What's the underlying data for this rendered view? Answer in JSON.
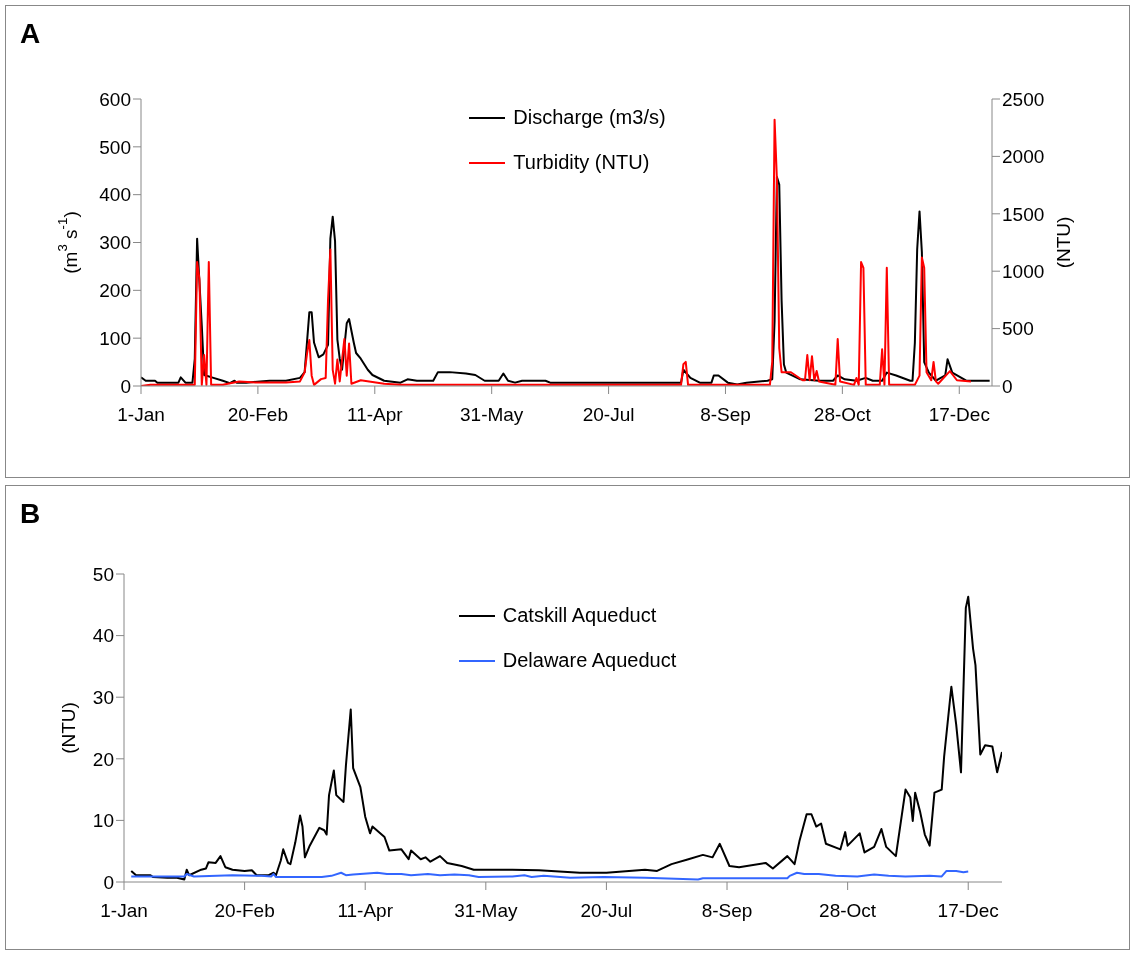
{
  "chart_data": [
    {
      "type": "line",
      "title": "A",
      "ylabel": "(m$^{3}$ s$^{-1}$)",
      "y2label": "(NTU)",
      "legend": "top",
      "xlim": [
        "--01-01",
        "--12-31"
      ],
      "xticks": [
        {
          "value": "--01-01",
          "label": "1-Jan"
        },
        {
          "value": "--02-20",
          "label": "20-Feb"
        },
        {
          "value": "--04-11",
          "label": "11-Apr"
        },
        {
          "value": "--05-31",
          "label": "31-May"
        },
        {
          "value": "--07-20",
          "label": "20-Jul"
        },
        {
          "value": "--09-08",
          "label": "8-Sep"
        },
        {
          "value": "--10-28",
          "label": "28-Oct"
        },
        {
          "value": "--12-17",
          "label": "17-Dec"
        }
      ],
      "ylim": [
        0,
        600
      ],
      "yticks": [
        0,
        100,
        200,
        300,
        400,
        500,
        600
      ],
      "y2lim": [
        0,
        2500
      ],
      "y2ticks": [
        0,
        500,
        1000,
        1500,
        2000,
        2500
      ],
      "series": [
        {
          "name": "Discharge (m3/s)",
          "color": "#000000",
          "x": [
            "--01-01",
            "--01-03",
            "--01-07",
            "--01-08",
            "--01-17",
            "--01-18",
            "--01-20",
            "--01-23",
            "--01-24",
            "--01-25",
            "--01-26",
            "--01-27",
            "--01-28",
            "--02-01",
            "--02-05",
            "--02-08",
            "--02-10",
            "--02-11",
            "--02-15",
            "--02-25",
            "--03-04",
            "--03-10",
            "--03-12",
            "--03-14",
            "--03-15",
            "--03-16",
            "--03-18",
            "--03-20",
            "--03-22",
            "--03-23",
            "--03-24",
            "--03-25",
            "--03-26",
            "--03-27",
            "--03-28",
            "--03-30",
            "--03-31",
            "--04-02",
            "--04-03",
            "--04-05",
            "--04-08",
            "--04-10",
            "--04-15",
            "--04-22",
            "--04-25",
            "--04-29",
            "--05-06",
            "--05-08",
            "--05-13",
            "--05-20",
            "--05-24",
            "--05-28",
            "--06-03",
            "--06-05",
            "--06-07",
            "--06-10",
            "--06-13",
            "--06-23",
            "--06-25",
            "--08-20",
            "--08-21",
            "--08-24",
            "--08-28",
            "--09-02",
            "--09-03",
            "--09-05",
            "--09-09",
            "--09-13",
            "--09-17",
            "--09-26",
            "--09-28",
            "--09-29",
            "--09-30",
            "--10-01",
            "--10-02",
            "--10-03",
            "--10-04",
            "--10-10",
            "--10-18",
            "--10-24",
            "--10-26",
            "--10-29",
            "--11-03",
            "--11-07",
            "--11-10",
            "--11-14",
            "--11-16",
            "--11-20",
            "--11-26",
            "--11-27",
            "--11-28",
            "--11-29",
            "--11-30",
            "--12-01",
            "--12-02",
            "--12-04",
            "--12-07",
            "--12-11",
            "--12-12",
            "--12-14",
            "--12-20",
            "--12-30"
          ],
          "values": [
            18,
            11,
            11,
            7,
            7,
            18,
            7,
            7,
            57,
            308,
            217,
            126,
            23,
            17,
            11,
            6,
            11,
            7,
            7,
            11,
            11,
            17,
            29,
            154,
            154,
            91,
            60,
            66,
            86,
            308,
            354,
            303,
            97,
            57,
            34,
            131,
            140,
            91,
            69,
            57,
            34,
            23,
            11,
            7,
            14,
            11,
            11,
            29,
            29,
            26,
            23,
            11,
            11,
            26,
            11,
            7,
            11,
            11,
            7,
            7,
            34,
            17,
            7,
            7,
            22,
            22,
            7,
            3,
            7,
            11,
            14,
            135,
            437,
            421,
            179,
            45,
            28,
            14,
            11,
            11,
            22,
            14,
            11,
            17,
            11,
            11,
            28,
            22,
            11,
            11,
            90,
            286,
            365,
            280,
            50,
            28,
            11,
            22,
            56,
            28,
            11,
            11
          ]
        },
        {
          "name": "Turbidity (NTU)",
          "color": "#ff0000",
          "axis": "y2",
          "x": [
            "--01-01",
            "--01-05",
            "--01-24",
            "--01-25",
            "--01-26",
            "--01-27",
            "--01-28",
            "--01-29",
            "--01-30",
            "--01-31",
            "--02-05",
            "--02-12",
            "--02-19",
            "--03-04",
            "--03-10",
            "--03-12",
            "--03-13",
            "--03-14",
            "--03-15",
            "--03-16",
            "--03-19",
            "--03-21",
            "--03-22",
            "--03-23",
            "--03-24",
            "--03-25",
            "--03-26",
            "--03-27",
            "--03-29",
            "--03-30",
            "--03-31",
            "--04-01",
            "--04-05",
            "--04-15",
            "--04-22",
            "--06-29",
            "--08-20",
            "--08-21",
            "--08-22",
            "--08-23",
            "--09-27",
            "--09-28",
            "--09-29",
            "--09-30",
            "--10-01",
            "--10-02",
            "--10-06",
            "--10-11",
            "--10-12",
            "--10-13",
            "--10-14",
            "--10-15",
            "--10-16",
            "--10-17",
            "--10-18",
            "--10-25",
            "--10-26",
            "--10-27",
            "--11-02",
            "--11-03",
            "--11-04",
            "--11-05",
            "--11-06",
            "--11-07",
            "--11-13",
            "--11-14",
            "--11-15",
            "--11-16",
            "--11-17",
            "--11-28",
            "--11-30",
            "--12-01",
            "--12-02",
            "--12-03",
            "--12-05",
            "--12-06",
            "--12-07",
            "--12-08",
            "--12-13",
            "--12-16",
            "--12-22"
          ],
          "values": [
            0,
            10,
            10,
            1080,
            930,
            10,
            270,
            10,
            1080,
            10,
            10,
            40,
            30,
            30,
            40,
            120,
            280,
            400,
            90,
            10,
            60,
            70,
            750,
            1190,
            140,
            20,
            230,
            40,
            410,
            90,
            370,
            20,
            50,
            20,
            10,
            10,
            10,
            190,
            210,
            10,
            10,
            210,
            2320,
            1800,
            330,
            120,
            120,
            50,
            50,
            270,
            50,
            260,
            50,
            130,
            40,
            10,
            410,
            40,
            10,
            70,
            10,
            1080,
            1030,
            10,
            10,
            320,
            10,
            1030,
            10,
            10,
            90,
            1120,
            1030,
            120,
            50,
            210,
            40,
            20,
            130,
            50,
            40
          ]
        }
      ]
    },
    {
      "type": "line",
      "title": "B",
      "ylabel": "(NTU)",
      "legend": "top",
      "xlim": [
        "--01-01",
        "--12-31"
      ],
      "xticks": [
        {
          "value": "--01-01",
          "label": "1-Jan"
        },
        {
          "value": "--02-20",
          "label": "20-Feb"
        },
        {
          "value": "--04-11",
          "label": "11-Apr"
        },
        {
          "value": "--05-31",
          "label": "31-May"
        },
        {
          "value": "--07-20",
          "label": "20-Jul"
        },
        {
          "value": "--09-08",
          "label": "8-Sep"
        },
        {
          "value": "--10-28",
          "label": "28-Oct"
        },
        {
          "value": "--12-17",
          "label": "17-Dec"
        }
      ],
      "ylim": [
        0,
        50
      ],
      "yticks": [
        0,
        10,
        20,
        30,
        40,
        50
      ],
      "series": [
        {
          "name": "Catskill Aqueduct",
          "color": "#000000",
          "x": [
            "--01-04",
            "--01-06",
            "--01-12",
            "--01-13",
            "--01-19",
            "--01-23",
            "--01-26",
            "--01-27",
            "--01-28",
            "--02-02",
            "--02-04",
            "--02-05",
            "--02-08",
            "--02-10",
            "--02-12",
            "--02-15",
            "--02-20",
            "--02-23",
            "--02-25",
            "--03-02",
            "--03-04",
            "--03-05",
            "--03-07",
            "--03-08",
            "--03-09",
            "--03-10",
            "--03-11",
            "--03-13",
            "--03-15",
            "--03-16",
            "--03-17",
            "--03-19",
            "--03-23",
            "--03-25",
            "--03-26",
            "--03-27",
            "--03-29",
            "--03-30",
            "--04-02",
            "--04-03",
            "--04-05",
            "--04-06",
            "--04-09",
            "--04-11",
            "--04-13",
            "--04-14",
            "--04-19",
            "--04-21",
            "--04-26",
            "--04-29",
            "--04-30",
            "--05-04",
            "--05-06",
            "--05-08",
            "--05-12",
            "--05-15",
            "--05-21",
            "--05-26",
            "--06-11",
            "--06-22",
            "--07-09",
            "--07-20",
            "--08-05",
            "--08-10",
            "--08-16",
            "--08-23",
            "--08-29",
            "--09-02",
            "--09-05",
            "--09-09",
            "--09-13",
            "--09-24",
            "--09-27",
            "--10-03",
            "--10-06",
            "--10-08",
            "--10-11",
            "--10-13",
            "--10-15",
            "--10-17",
            "--10-19",
            "--10-25",
            "--10-27",
            "--10-28",
            "--11-02",
            "--11-04",
            "--11-08",
            "--11-11",
            "--11-13",
            "--11-17",
            "--11-21",
            "--11-23",
            "--11-24",
            "--11-25",
            "--11-27",
            "--11-29",
            "--12-01",
            "--12-03",
            "--12-06",
            "--12-07",
            "--12-10",
            "--12-12",
            "--12-14",
            "--12-16",
            "--12-17",
            "--12-19",
            "--12-20",
            "--12-22",
            "--12-24",
            "--12-27",
            "--12-29",
            "--12-31"
          ],
          "values": [
            1.8,
            1.1,
            1.1,
            0.8,
            0.7,
            0.7,
            0.4,
            2.0,
            1.1,
            2.0,
            2.2,
            3.2,
            3.1,
            4.2,
            2.4,
            2.0,
            1.8,
            1.9,
            1.1,
            1.1,
            1.5,
            1.1,
            3.5,
            5.3,
            4.2,
            3.1,
            2.9,
            6.4,
            10.8,
            9.0,
            4.0,
            5.9,
            8.8,
            8.4,
            7.7,
            14.1,
            18.1,
            14.1,
            13.0,
            18.9,
            28,
            18.5,
            15.4,
            10.6,
            7.9,
            9.0,
            7.3,
            5.1,
            5.3,
            3.7,
            5.1,
            3.7,
            4.0,
            3.3,
            4.2,
            3.1,
            2.6,
            2.0,
            2.0,
            1.9,
            1.5,
            1.5,
            2.0,
            1.8,
            2.9,
            3.7,
            4.4,
            4.0,
            6.2,
            2.6,
            2.4,
            3.1,
            2.2,
            4.2,
            2.9,
            6.6,
            11.0,
            11.0,
            9.0,
            9.5,
            6.2,
            5.3,
            8.1,
            5.9,
            7.9,
            4.8,
            5.7,
            8.6,
            5.7,
            4.2,
            15.0,
            13.7,
            9.9,
            14.5,
            11.5,
            7.7,
            5.9,
            14.5,
            15.0,
            20.3,
            31.7,
            25.6,
            17.8,
            44.5,
            46.3,
            37.9,
            35.2,
            20.7,
            22.2,
            22.0,
            17.8,
            21.1
          ]
        },
        {
          "name": "Delaware Aqueduct",
          "color": "#3366ff",
          "x": [
            "--01-04",
            "--01-26",
            "--01-27",
            "--01-30",
            "--02-15",
            "--02-27",
            "--03-03",
            "--03-04",
            "--03-05",
            "--03-24",
            "--03-28",
            "--04-01",
            "--04-03",
            "--04-06",
            "--04-16",
            "--04-20",
            "--04-26",
            "--04-30",
            "--05-07",
            "--05-12",
            "--05-18",
            "--05-24",
            "--05-28",
            "--06-11",
            "--06-16",
            "--06-19",
            "--06-24",
            "--07-05",
            "--07-19",
            "--08-05",
            "--08-27",
            "--08-29",
            "--10-03",
            "--10-04",
            "--10-07",
            "--10-10",
            "--10-16",
            "--10-23",
            "--11-01",
            "--11-08",
            "--11-14",
            "--11-21",
            "--12-01",
            "--12-06",
            "--12-08",
            "--12-12",
            "--12-15",
            "--12-17"
          ],
          "values": [
            0.9,
            0.9,
            1.3,
            0.9,
            1.1,
            1.0,
            0.9,
            1.3,
            0.8,
            0.8,
            1.0,
            1.5,
            1.1,
            1.2,
            1.5,
            1.3,
            1.3,
            1.1,
            1.3,
            1.1,
            1.2,
            1.1,
            0.8,
            0.9,
            1.1,
            0.8,
            1.0,
            0.7,
            0.8,
            0.7,
            0.4,
            0.6,
            0.6,
            1.0,
            1.5,
            1.3,
            1.3,
            1.0,
            0.9,
            1.2,
            1.0,
            0.9,
            1.0,
            0.9,
            1.8,
            1.8,
            1.6,
            1.7
          ]
        }
      ]
    }
  ]
}
